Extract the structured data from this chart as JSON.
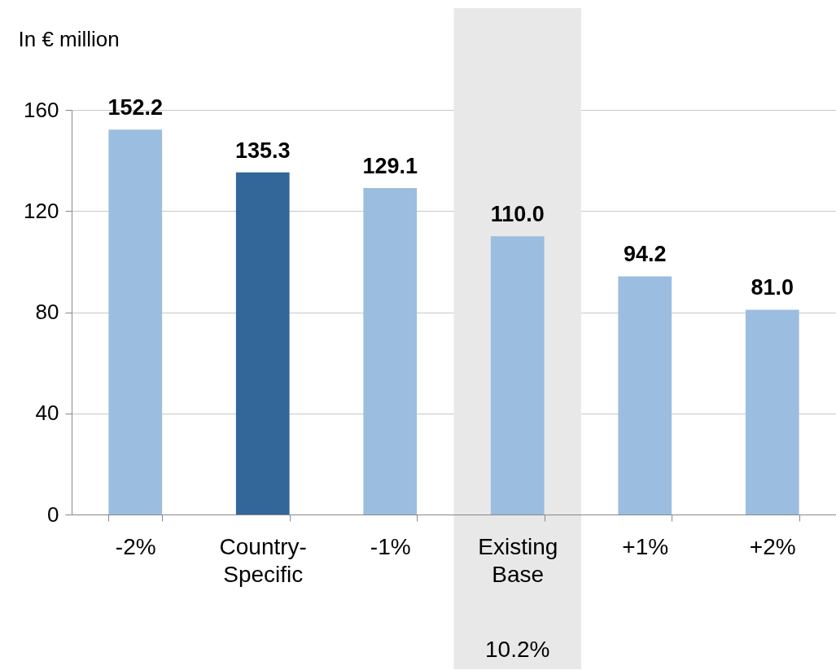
{
  "chart_data": {
    "type": "bar",
    "ylabel": "In € million",
    "categories": [
      "-2%",
      "Country-Specific",
      "-1%",
      "Existing Base",
      "+1%",
      "+2%"
    ],
    "values": [
      152.2,
      135.3,
      129.1,
      110.0,
      94.2,
      81.0
    ],
    "value_labels": [
      "152.2",
      "135.3",
      "129.1",
      "110.0",
      "94.2",
      "81.0"
    ],
    "colors": [
      "#9bbddf",
      "#336699",
      "#9bbddf",
      "#9bbddf",
      "#9bbddf",
      "#9bbddf"
    ],
    "ylim": [
      0,
      160
    ],
    "yticks": [
      0,
      40,
      80,
      120,
      160
    ],
    "grid": "y",
    "bands": [
      {
        "axis": "x",
        "from": "Existing Base",
        "to": "Existing Base",
        "label": "10.2%",
        "color": "#e8e8e8"
      }
    ]
  }
}
